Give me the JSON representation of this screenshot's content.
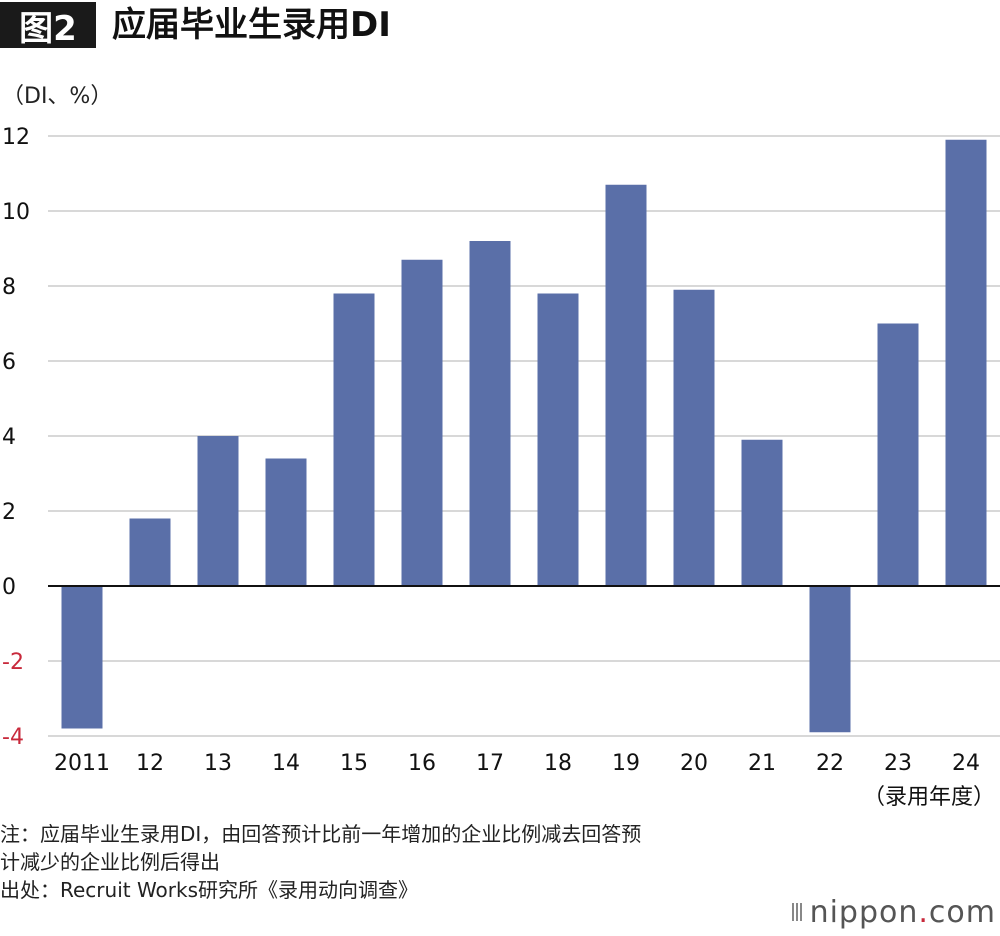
{
  "figure": {
    "badge": "图2",
    "title": "应届毕业生录用DI"
  },
  "unit_label": "（DI、%）",
  "colors": {
    "bar": "#5a6fa8",
    "grid": "#cccccc",
    "axis_zero": "#111111",
    "negative_tick": "#c8293b",
    "tick_text": "#111111"
  },
  "chart_data": {
    "type": "bar",
    "title": "应届毕业生录用DI",
    "ylabel": "（DI、%）",
    "xlabel": "（录用年度）",
    "categories": [
      "2011",
      "12",
      "13",
      "14",
      "15",
      "16",
      "17",
      "18",
      "19",
      "20",
      "21",
      "22",
      "23",
      "24"
    ],
    "values": [
      -3.8,
      1.8,
      4.0,
      3.4,
      7.8,
      8.7,
      9.2,
      7.8,
      10.7,
      7.9,
      3.9,
      -3.9,
      7.0,
      11.9
    ],
    "y_ticks": [
      12,
      10,
      8,
      6,
      4,
      2,
      0,
      -2,
      -4
    ],
    "ylim": [
      -4,
      12
    ],
    "grid": true
  },
  "notes": {
    "line1": "注：应届毕业生录用DI，由回答预计比前一年增加的企业比例减去回答预",
    "line2": "计减少的企业比例后得出",
    "line3": "出处：Recruit Works研究所《录用动向调查》"
  },
  "logo": {
    "name": "nippon",
    "dot": ".",
    "tld": "com"
  }
}
